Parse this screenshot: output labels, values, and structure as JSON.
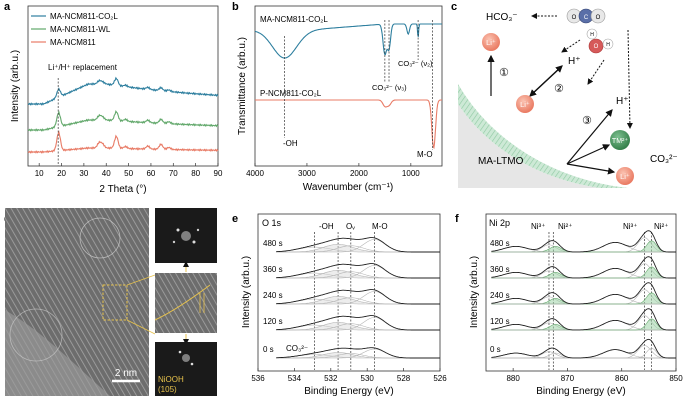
{
  "panels": {
    "a": {
      "letter": "a"
    },
    "b": {
      "letter": "b"
    },
    "c": {
      "letter": "c"
    },
    "d": {
      "letter": "d"
    },
    "e": {
      "letter": "e"
    },
    "f": {
      "letter": "f"
    }
  },
  "colors": {
    "teal": "#2e7f9f",
    "green": "#62a86b",
    "salmon": "#e87b66",
    "mint": "#9fd4a8",
    "band": "#a8d8b8",
    "liion": "#f08c72",
    "tm": "#3f8f57"
  },
  "chart_data": [
    {
      "id": "a",
      "type": "line",
      "title": "",
      "xlabel": "2 Theta (°)",
      "ylabel": "Intensity (arb.u.)",
      "xlim": [
        5,
        90
      ],
      "xticks": [
        10,
        20,
        30,
        40,
        50,
        60,
        70,
        80,
        90
      ],
      "legend": [
        "MA-NCM811-CO₂L",
        "MA-NCM811-WL",
        "MA-NCM811"
      ],
      "annotation": "Li⁺/H⁺ replacement",
      "annotation_x": 18.5,
      "series": [
        {
          "name": "MA-NCM811-CO₂L",
          "color": "#2e7f9f",
          "peaks": [
            [
              18.7,
              8
            ],
            [
              36.8,
              3
            ],
            [
              38.3,
              2
            ],
            [
              44.5,
              7
            ],
            [
              48.6,
              1.5
            ],
            [
              58.6,
              2
            ],
            [
              64.5,
              3
            ],
            [
              68,
              1.5
            ]
          ]
        },
        {
          "name": "MA-NCM811-WL",
          "color": "#62a86b",
          "peaks": [
            [
              18.7,
              14
            ],
            [
              36.8,
              4
            ],
            [
              38.3,
              3
            ],
            [
              44.5,
              9
            ],
            [
              48.6,
              2
            ],
            [
              58.6,
              2.5
            ],
            [
              64.5,
              4
            ],
            [
              68,
              2
            ]
          ]
        },
        {
          "name": "MA-NCM811",
          "color": "#e87b66",
          "peaks": [
            [
              18.7,
              18
            ],
            [
              36.8,
              5
            ],
            [
              38.3,
              4
            ],
            [
              44.5,
              12
            ],
            [
              48.6,
              2
            ],
            [
              58.6,
              3
            ],
            [
              64.5,
              5
            ],
            [
              68,
              2
            ]
          ]
        }
      ]
    },
    {
      "id": "b",
      "type": "line",
      "xlabel": "Wavenumber (cm⁻¹)",
      "ylabel": "Transmittance (arb.u.)",
      "xlim": [
        4000,
        400
      ],
      "xticks": [
        4000,
        3000,
        2000,
        1000
      ],
      "series": [
        {
          "name": "MA-NCM811-CO₂L",
          "color": "#2e7f9f"
        },
        {
          "name": "P-NCM811-CO₂L",
          "color": "#e87b66"
        }
      ],
      "annotations": [
        "-OH",
        "CO₃²⁻ (ν₃)",
        "CO₃²⁻ (ν₂)",
        "M-O"
      ],
      "markers": [
        3430,
        1500,
        1420,
        860,
        580
      ]
    },
    {
      "id": "e",
      "type": "line",
      "title": "O 1s",
      "xlabel": "Binding Energy (eV)",
      "ylabel": "Intensity (arb.u.)",
      "xlim": [
        536,
        526
      ],
      "xticks": [
        536,
        534,
        532,
        530,
        528,
        526
      ],
      "series_labels": [
        "480 s",
        "360 s",
        "240 s",
        "120 s",
        "0 s"
      ],
      "peak_labels": [
        "-OH",
        "Oᵥ",
        "M-O",
        "CO₃²⁻"
      ],
      "markers": [
        532.9,
        531.6,
        530.9,
        529.6
      ]
    },
    {
      "id": "f",
      "type": "line",
      "title": "Ni 2p",
      "xlabel": "Binding Energy (eV)",
      "ylabel": "Intensity (arb.u.)",
      "xlim": [
        885,
        850
      ],
      "xticks": [
        880,
        870,
        860,
        850
      ],
      "series_labels": [
        "480 s",
        "360 s",
        "240 s",
        "120 s",
        "0 s"
      ],
      "peak_labels": [
        "Ni³⁺",
        "Ni²⁺",
        "Ni³⁺",
        "Ni²⁺"
      ],
      "markers": [
        873.4,
        872.6,
        855.8,
        854.5
      ]
    }
  ],
  "diagram_c": {
    "hco3": "HCO₃⁻",
    "hplus1": "H⁺",
    "hplus2": "H⁺",
    "li1": "Li⁺",
    "li2": "Li⁺",
    "li3": "Li⁺",
    "tm": "TM²⁺",
    "co3": "CO₃²⁻",
    "step1": "①",
    "step2": "②",
    "step3": "③",
    "material": "MA-LTMO",
    "co2_atoms": [
      "O",
      "C",
      "O"
    ],
    "h2o_atoms": [
      "H",
      "O",
      "H"
    ]
  },
  "panel_d": {
    "scale": "2 nm",
    "inset_label_1": "NiOOH",
    "inset_label_2": "(105)"
  }
}
